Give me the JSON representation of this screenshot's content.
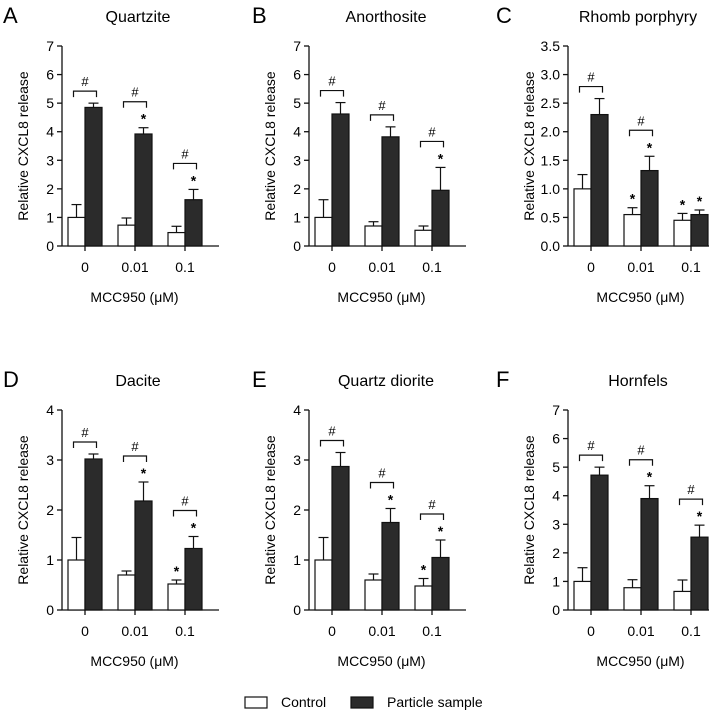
{
  "colors": {
    "control_fill": "#ffffff",
    "particle_fill": "#2b2b2b",
    "axis": "#111111"
  },
  "legend": {
    "control": "Control",
    "particle": "Particle sample"
  },
  "chart_data": [
    {
      "type": "bar",
      "panel": "A",
      "title": "Quartzite",
      "ylabel": "Relative CXCL8 release",
      "xlabel": "MCC950 (μM)",
      "categories": [
        "0",
        "0.01",
        "0.1"
      ],
      "ylim": [
        0,
        7
      ],
      "yticks": [
        0,
        1,
        2,
        3,
        4,
        5,
        6,
        7
      ],
      "series": [
        {
          "name": "Control",
          "values": [
            1.0,
            0.73,
            0.47
          ],
          "errors": [
            0.45,
            0.25,
            0.22
          ],
          "stars": [
            "",
            "",
            ""
          ]
        },
        {
          "name": "Particle sample",
          "values": [
            4.85,
            3.92,
            1.62
          ],
          "errors": [
            0.15,
            0.22,
            0.36
          ],
          "stars": [
            "",
            "*",
            "*"
          ]
        }
      ],
      "hash": [
        "#",
        "#",
        "#"
      ]
    },
    {
      "type": "bar",
      "panel": "B",
      "title": "Anorthosite",
      "ylabel": "Relative CXCL8 release",
      "xlabel": "MCC950 (μM)",
      "categories": [
        "0",
        "0.01",
        "0.1"
      ],
      "ylim": [
        0,
        7
      ],
      "yticks": [
        0,
        1,
        2,
        3,
        4,
        5,
        6,
        7
      ],
      "series": [
        {
          "name": "Control",
          "values": [
            1.0,
            0.7,
            0.55
          ],
          "errors": [
            0.62,
            0.15,
            0.15
          ],
          "stars": [
            "",
            "",
            ""
          ]
        },
        {
          "name": "Particle sample",
          "values": [
            4.62,
            3.82,
            1.95
          ],
          "errors": [
            0.4,
            0.35,
            0.8
          ],
          "stars": [
            "",
            "",
            "*"
          ]
        }
      ],
      "hash": [
        "#",
        "#",
        "#"
      ]
    },
    {
      "type": "bar",
      "panel": "C",
      "title": "Rhomb porphyry",
      "ylabel": "Relative CXCL8 release",
      "xlabel": "MCC950 (μM)",
      "categories": [
        "0",
        "0.01",
        "0.1"
      ],
      "ylim": [
        0,
        3.5
      ],
      "yticks": [
        0.0,
        0.5,
        1.0,
        1.5,
        2.0,
        2.5,
        3.0,
        3.5
      ],
      "series": [
        {
          "name": "Control",
          "values": [
            1.0,
            0.55,
            0.45
          ],
          "errors": [
            0.25,
            0.12,
            0.12
          ],
          "stars": [
            "",
            "*",
            "*"
          ]
        },
        {
          "name": "Particle sample",
          "values": [
            2.3,
            1.32,
            0.55
          ],
          "errors": [
            0.28,
            0.25,
            0.08
          ],
          "stars": [
            "",
            "*",
            "*"
          ]
        }
      ],
      "hash": [
        "#",
        "#",
        ""
      ]
    },
    {
      "type": "bar",
      "panel": "D",
      "title": "Dacite",
      "ylabel": "Relative CXCL8 release",
      "xlabel": "MCC950 (μM)",
      "categories": [
        "0",
        "0.01",
        "0.1"
      ],
      "ylim": [
        0,
        4
      ],
      "yticks": [
        0,
        1,
        2,
        3,
        4
      ],
      "series": [
        {
          "name": "Control",
          "values": [
            1.0,
            0.7,
            0.52
          ],
          "errors": [
            0.45,
            0.08,
            0.08
          ],
          "stars": [
            "",
            "",
            "*"
          ]
        },
        {
          "name": "Particle sample",
          "values": [
            3.02,
            2.18,
            1.23
          ],
          "errors": [
            0.1,
            0.38,
            0.24
          ],
          "stars": [
            "",
            "*",
            "*"
          ]
        }
      ],
      "hash": [
        "#",
        "#",
        "#"
      ]
    },
    {
      "type": "bar",
      "panel": "E",
      "title": "Quartz diorite",
      "ylabel": "Relative CXCL8 release",
      "xlabel": "MCC950 (μM)",
      "categories": [
        "0",
        "0.01",
        "0.1"
      ],
      "ylim": [
        0,
        4
      ],
      "yticks": [
        0,
        1,
        2,
        3,
        4
      ],
      "series": [
        {
          "name": "Control",
          "values": [
            1.0,
            0.6,
            0.48
          ],
          "errors": [
            0.45,
            0.12,
            0.15
          ],
          "stars": [
            "",
            "",
            "*"
          ]
        },
        {
          "name": "Particle sample",
          "values": [
            2.87,
            1.75,
            1.05
          ],
          "errors": [
            0.28,
            0.28,
            0.35
          ],
          "stars": [
            "",
            "*",
            "*"
          ]
        }
      ],
      "hash": [
        "#",
        "#",
        "#"
      ]
    },
    {
      "type": "bar",
      "panel": "F",
      "title": "Hornfels",
      "ylabel": "Relative CXCL8 release",
      "xlabel": "MCC950 (μM)",
      "categories": [
        "0",
        "0.01",
        "0.1"
      ],
      "ylim": [
        0,
        7
      ],
      "yticks": [
        0,
        1,
        2,
        3,
        4,
        5,
        6,
        7
      ],
      "series": [
        {
          "name": "Control",
          "values": [
            1.0,
            0.78,
            0.65
          ],
          "errors": [
            0.48,
            0.28,
            0.4
          ],
          "stars": [
            "",
            "",
            ""
          ]
        },
        {
          "name": "Particle sample",
          "values": [
            4.72,
            3.9,
            2.55
          ],
          "errors": [
            0.28,
            0.45,
            0.42
          ],
          "stars": [
            "",
            "*",
            "*"
          ]
        }
      ],
      "hash": [
        "#",
        "#",
        "#"
      ]
    }
  ]
}
